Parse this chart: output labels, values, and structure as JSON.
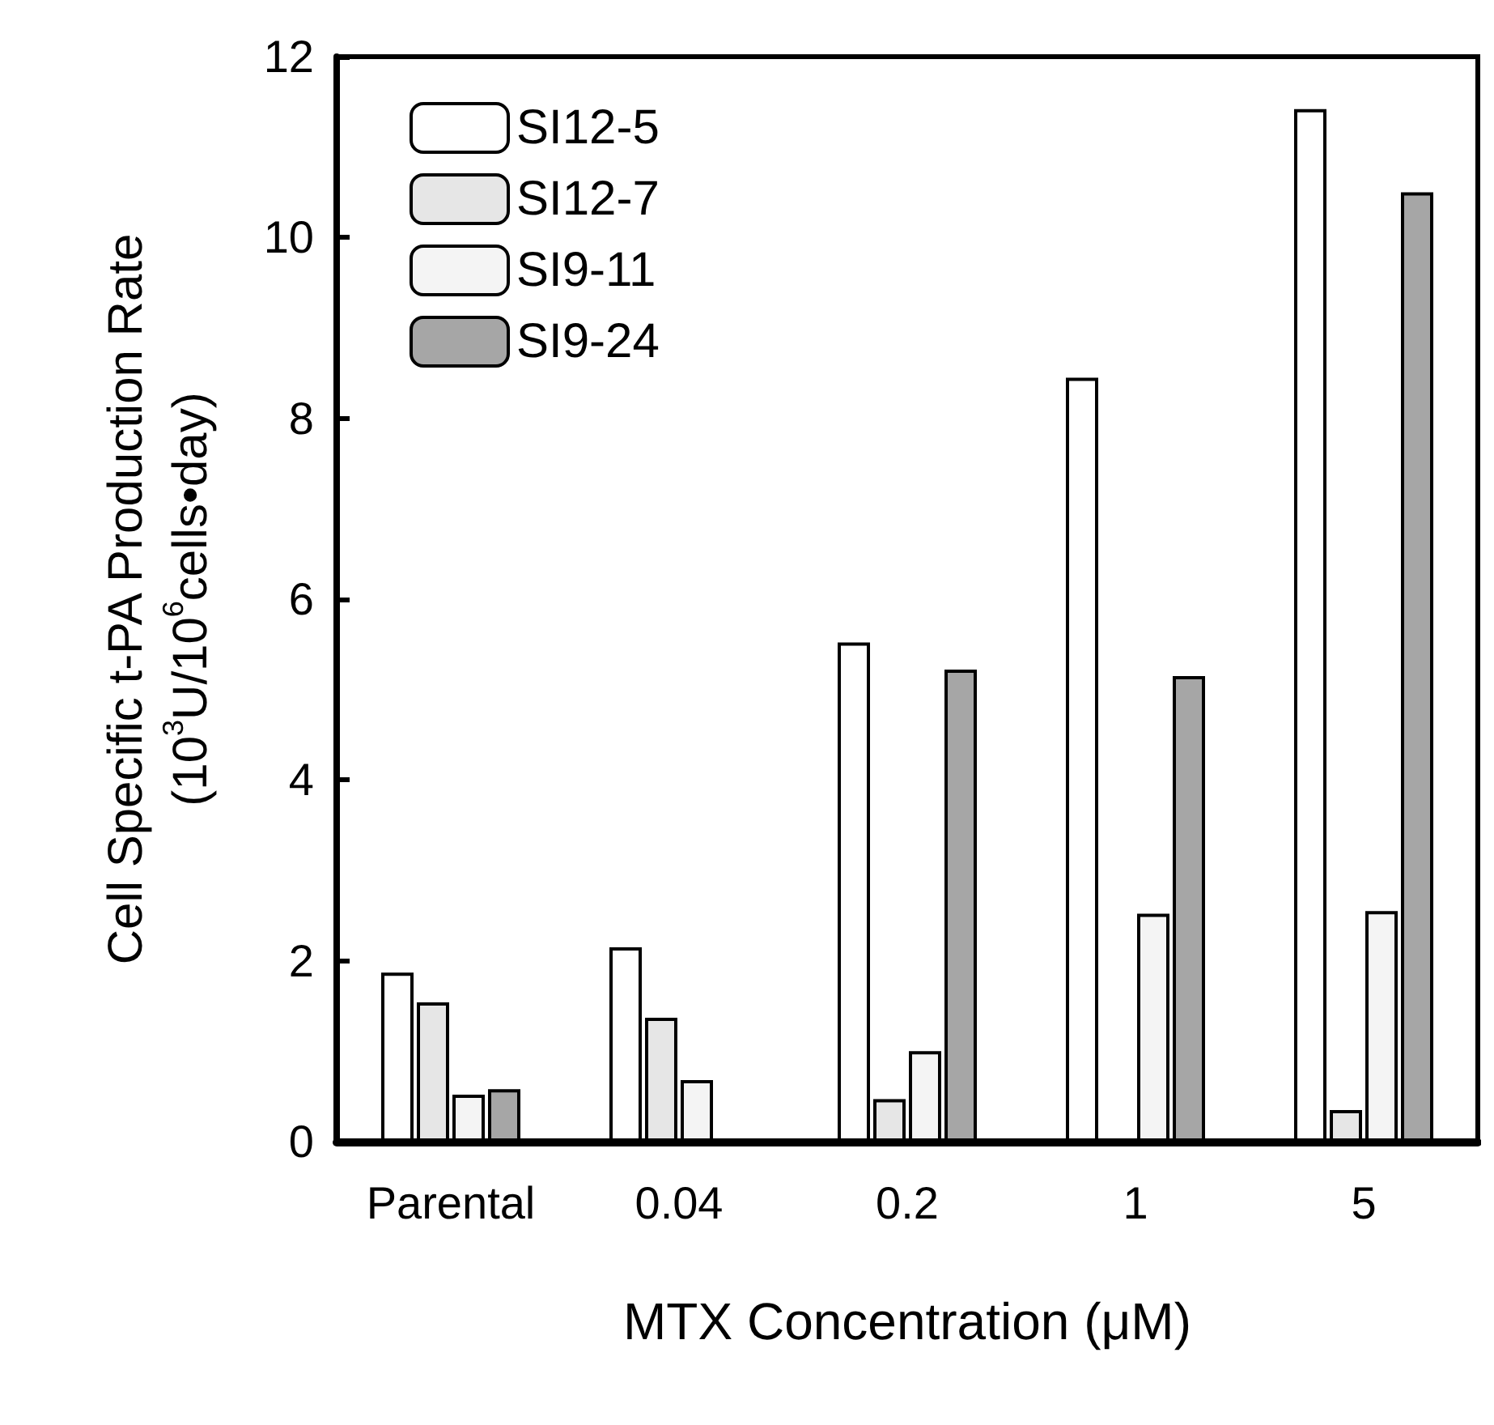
{
  "chart_data": {
    "type": "bar",
    "xlabel": "MTX Concentration (μM)",
    "ylabel": "Cell Specific t-PA Production Rate\n(10$^{3}$U/10$^{6}$cells•day)",
    "categories": [
      "Parental",
      "0.04",
      "0.2",
      "1",
      "5"
    ],
    "ylim": [
      0,
      12
    ],
    "yticks": [
      0,
      2,
      4,
      6,
      8,
      10,
      12
    ],
    "grid": false,
    "legend": "top left",
    "series": [
      {
        "name": "SI12-5",
        "color": "#ffffff",
        "values": [
          1.87,
          2.15,
          5.52,
          8.45,
          11.42
        ]
      },
      {
        "name": "SI12-7",
        "color": "#e6e6e6",
        "values": [
          1.54,
          1.37,
          0.47,
          null,
          0.35
        ]
      },
      {
        "name": "SI9-11",
        "color": "#f4f4f4",
        "values": [
          0.52,
          0.68,
          1.0,
          2.52,
          2.55
        ]
      },
      {
        "name": "SI9-24",
        "color": "#a6a6a6",
        "values": [
          0.58,
          null,
          5.22,
          5.15,
          10.5
        ]
      }
    ]
  }
}
